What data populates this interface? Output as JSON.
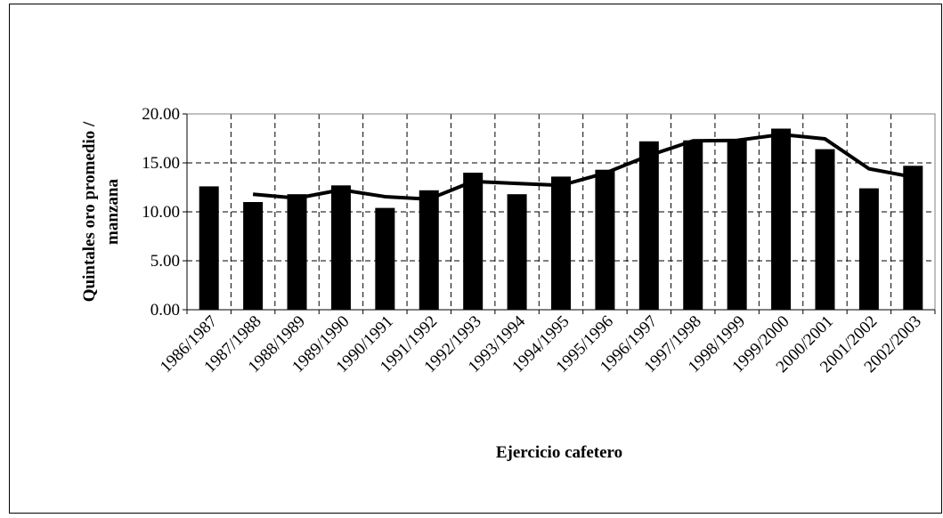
{
  "chart_data": {
    "type": "bar_line",
    "x_label": "Ejercicio cafetero",
    "y_label": "Quintales oro promedio / manzana",
    "categories": [
      "1986/1987",
      "1987/1988",
      "1988/1989",
      "1989/1990",
      "1990/1991",
      "1991/1992",
      "1992/1993",
      "1993/1994",
      "1994/1995",
      "1995/1996",
      "1996/1997",
      "1997/1998",
      "1998/1999",
      "1999/2000",
      "2000/2001",
      "2001/2002",
      "2002/2003"
    ],
    "series": [
      {
        "type": "bar",
        "color": "#000000",
        "values": [
          12.6,
          11.0,
          11.8,
          12.7,
          10.4,
          12.2,
          14.0,
          11.8,
          13.6,
          14.3,
          17.2,
          17.3,
          17.3,
          18.5,
          16.4,
          12.4,
          14.7
        ]
      },
      {
        "type": "line",
        "color": "#000000",
        "values": [
          null,
          11.8,
          11.4,
          12.25,
          11.55,
          11.3,
          13.1,
          12.9,
          12.7,
          13.95,
          15.75,
          17.25,
          17.3,
          17.9,
          17.45,
          14.4,
          13.55
        ]
      }
    ],
    "ylim": [
      0,
      20
    ],
    "yticks": [
      {
        "value": 0,
        "label": "0.00"
      },
      {
        "value": 5,
        "label": "5.00"
      },
      {
        "value": 10,
        "label": "10.00"
      },
      {
        "value": 15,
        "label": "15.00"
      },
      {
        "value": 20,
        "label": "20.00"
      }
    ],
    "grid": true
  }
}
